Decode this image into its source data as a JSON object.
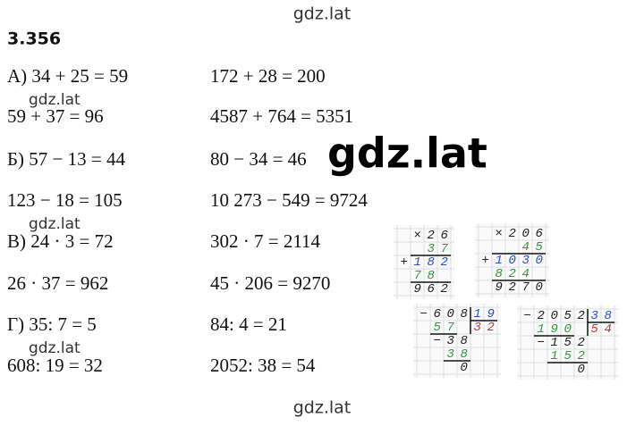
{
  "watermarks": {
    "top": "gdz.lat",
    "small_1": "gdz.lat",
    "small_2": "gdz.lat",
    "small_3": "gdz.lat",
    "big": "gdz.lat",
    "bottom": "gdz.lat"
  },
  "heading": "3.356",
  "rows": [
    [
      "А) 34 + 25 = 59",
      "172 + 28 = 200"
    ],
    [
      "59 + 37 = 96",
      "4587 + 764 = 5351"
    ],
    [
      "Б) 57 − 13 = 44",
      "80 − 34 = 46"
    ],
    [
      "123 − 18 = 105",
      "10 273 − 549 = 9724"
    ],
    [
      "В) 24 · 3 = 72",
      "302 · 7 = 2114"
    ],
    [
      "26 · 37 = 962",
      "45 · 206 = 9270"
    ],
    [
      "Г) 35: 7 = 5",
      "84: 4 = 21"
    ],
    [
      "608: 19 = 32",
      "2052: 38 = 54"
    ]
  ],
  "column_work": {
    "mult_1": {
      "operator": "×",
      "plus": "+",
      "lines": [
        "26",
        "37",
        "182",
        "78",
        "962"
      ]
    },
    "mult_2": {
      "operator": "×",
      "plus": "+",
      "lines": [
        "206",
        "45",
        "1030",
        "824",
        "9270"
      ]
    },
    "div_1": {
      "minus": "−",
      "dividend": "608",
      "divisor": "19",
      "quotient": "32",
      "steps": [
        "57",
        "38",
        "38",
        "0"
      ]
    },
    "div_2": {
      "minus": "−",
      "dividend": "2052",
      "divisor": "38",
      "quotient": "54",
      "steps": [
        "190",
        "152",
        "152",
        "0"
      ]
    }
  }
}
